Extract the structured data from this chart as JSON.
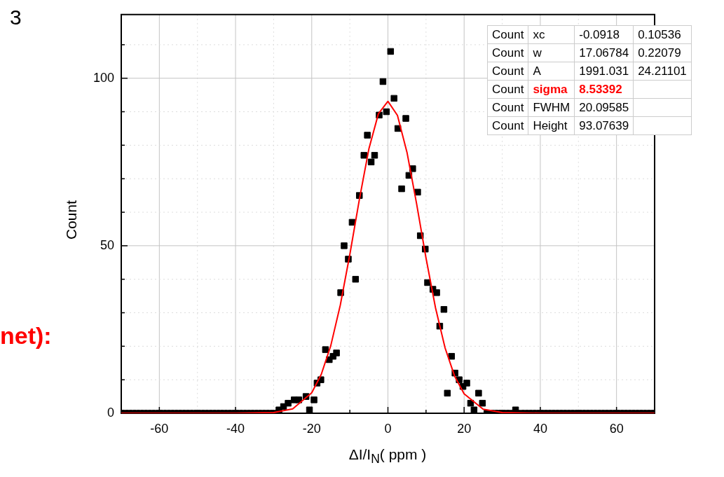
{
  "chart_data": {
    "type": "scatter",
    "xlabel": "ΔI/I$_{N}$( ppm )",
    "ylabel": "Count",
    "xlim": [
      -70,
      70
    ],
    "ylim": [
      0,
      119
    ],
    "xticks": [
      -60,
      {
        "value": -50,
        "label": null
      },
      -40,
      {
        "value": -30,
        "label": null
      },
      -20,
      {
        "value": -10,
        "label": null
      },
      0,
      {
        "value": 10,
        "label": null
      },
      20,
      {
        "value": 30,
        "label": null
      },
      40,
      {
        "value": 50,
        "label": null
      },
      60
    ],
    "yticks": [
      0,
      {
        "value": 10,
        "label": null
      },
      {
        "value": 20,
        "label": null
      },
      {
        "value": 30,
        "label": null
      },
      {
        "value": 40,
        "label": null
      },
      50,
      {
        "value": 60,
        "label": null
      },
      {
        "value": 70,
        "label": null
      },
      {
        "value": 80,
        "label": null
      },
      {
        "value": 90,
        "label": null
      },
      100,
      {
        "value": 110,
        "label": null
      }
    ],
    "grid": true,
    "legend": false,
    "marker": "square",
    "annotations": [
      "3",
      "net):",
      "Count xc -0.0918 0.10536",
      "Count w 17.06784 0.22079",
      "Count A 1991.031 24.21101",
      "Count sigma 8.53392",
      "Count FWHM 20.09585",
      "Count Height 93.07639"
    ],
    "series": [
      {
        "color": "#000000",
        "x": [
          -70,
          -69,
          -68,
          -67,
          -66,
          -65,
          -64,
          -63,
          -62,
          -61,
          -60,
          -59,
          -58,
          -57,
          -56,
          -55,
          -54,
          -53,
          -52,
          -51,
          -50,
          -49,
          -48,
          -47,
          -46,
          -45,
          -44,
          -43,
          -42,
          -41,
          -40,
          -39,
          -38,
          -37,
          -36,
          -35,
          -34,
          -33,
          -32,
          -31,
          -30,
          -28.6,
          -27.4,
          -26.2,
          -24.6,
          -23.4,
          -21.5,
          -20.6,
          -19.4,
          -18.6,
          -17.6,
          -16.4,
          -15.4,
          -14.4,
          -13.5,
          -12.4,
          -11.5,
          -10.4,
          -9.4,
          -8.5,
          -7.5,
          -6.3,
          -5.4,
          -4.4,
          -3.5,
          -2.3,
          -1.3,
          -0.4,
          0.7,
          1.6,
          2.6,
          3.6,
          4.7,
          5.5,
          6.5,
          7.8,
          8.5,
          9.8,
          10.4,
          11.8,
          12.8,
          13.6,
          14.7,
          15.6,
          16.7,
          17.6,
          18.7,
          19.7,
          20.7,
          21.7,
          22.6,
          23.8,
          24.8,
          26,
          27,
          28,
          29,
          30,
          31,
          32,
          33.5,
          35,
          36,
          37,
          38,
          39,
          40,
          41,
          42,
          43,
          44,
          45,
          46,
          47,
          48,
          49,
          50,
          51,
          52,
          53,
          54,
          55,
          56,
          57,
          58,
          59,
          60,
          61,
          62,
          63,
          64,
          65,
          66,
          67,
          68,
          69,
          70
        ],
        "values": [
          0,
          0,
          0,
          0,
          0,
          0,
          0,
          0,
          0,
          0,
          0,
          0,
          0,
          0,
          0,
          0,
          0,
          0,
          0,
          0,
          0,
          0,
          0,
          0,
          0,
          0,
          0,
          0,
          0,
          0,
          0,
          0,
          0,
          0,
          0,
          0,
          0,
          0,
          0,
          0,
          0,
          1,
          2,
          3,
          4,
          4,
          5,
          1,
          4,
          9,
          10,
          19,
          16,
          17,
          18,
          36,
          50,
          46,
          57,
          40,
          65,
          77,
          83,
          75,
          77,
          89,
          99,
          90,
          108,
          94,
          85,
          67,
          88,
          71,
          73,
          66,
          53,
          49,
          39,
          37,
          36,
          26,
          31,
          6,
          17,
          12,
          10,
          8,
          9,
          3,
          1,
          6,
          3,
          0,
          0,
          0,
          0,
          0,
          0,
          0,
          1,
          0,
          0,
          0,
          0,
          0,
          0,
          0,
          0,
          0,
          0,
          0,
          0,
          0,
          0,
          0,
          0,
          0,
          0,
          0,
          0,
          0,
          0,
          0,
          0,
          0,
          0,
          0,
          0,
          0,
          0,
          0,
          0,
          0,
          0,
          0,
          0
        ]
      },
      {
        "type": "line",
        "color": "#ff0000",
        "marker": "none",
        "line_style": "solid",
        "x": [
          -70,
          -40,
          -30,
          -25,
          -20,
          -17.5,
          -15,
          -12.5,
          -10,
          -7.5,
          -5,
          -2.5,
          0,
          2.5,
          5,
          7.5,
          10,
          12.5,
          15,
          17.5,
          20,
          25,
          30,
          40,
          70
        ],
        "values": [
          0,
          0,
          0.2,
          1.3,
          6.1,
          11.6,
          20.2,
          32.3,
          47.4,
          63.8,
          78.9,
          89.4,
          93.1,
          88.9,
          77.9,
          62.7,
          46.3,
          31.4,
          19.5,
          11.1,
          5.8,
          1.2,
          0.2,
          0,
          0
        ]
      }
    ]
  }
}
